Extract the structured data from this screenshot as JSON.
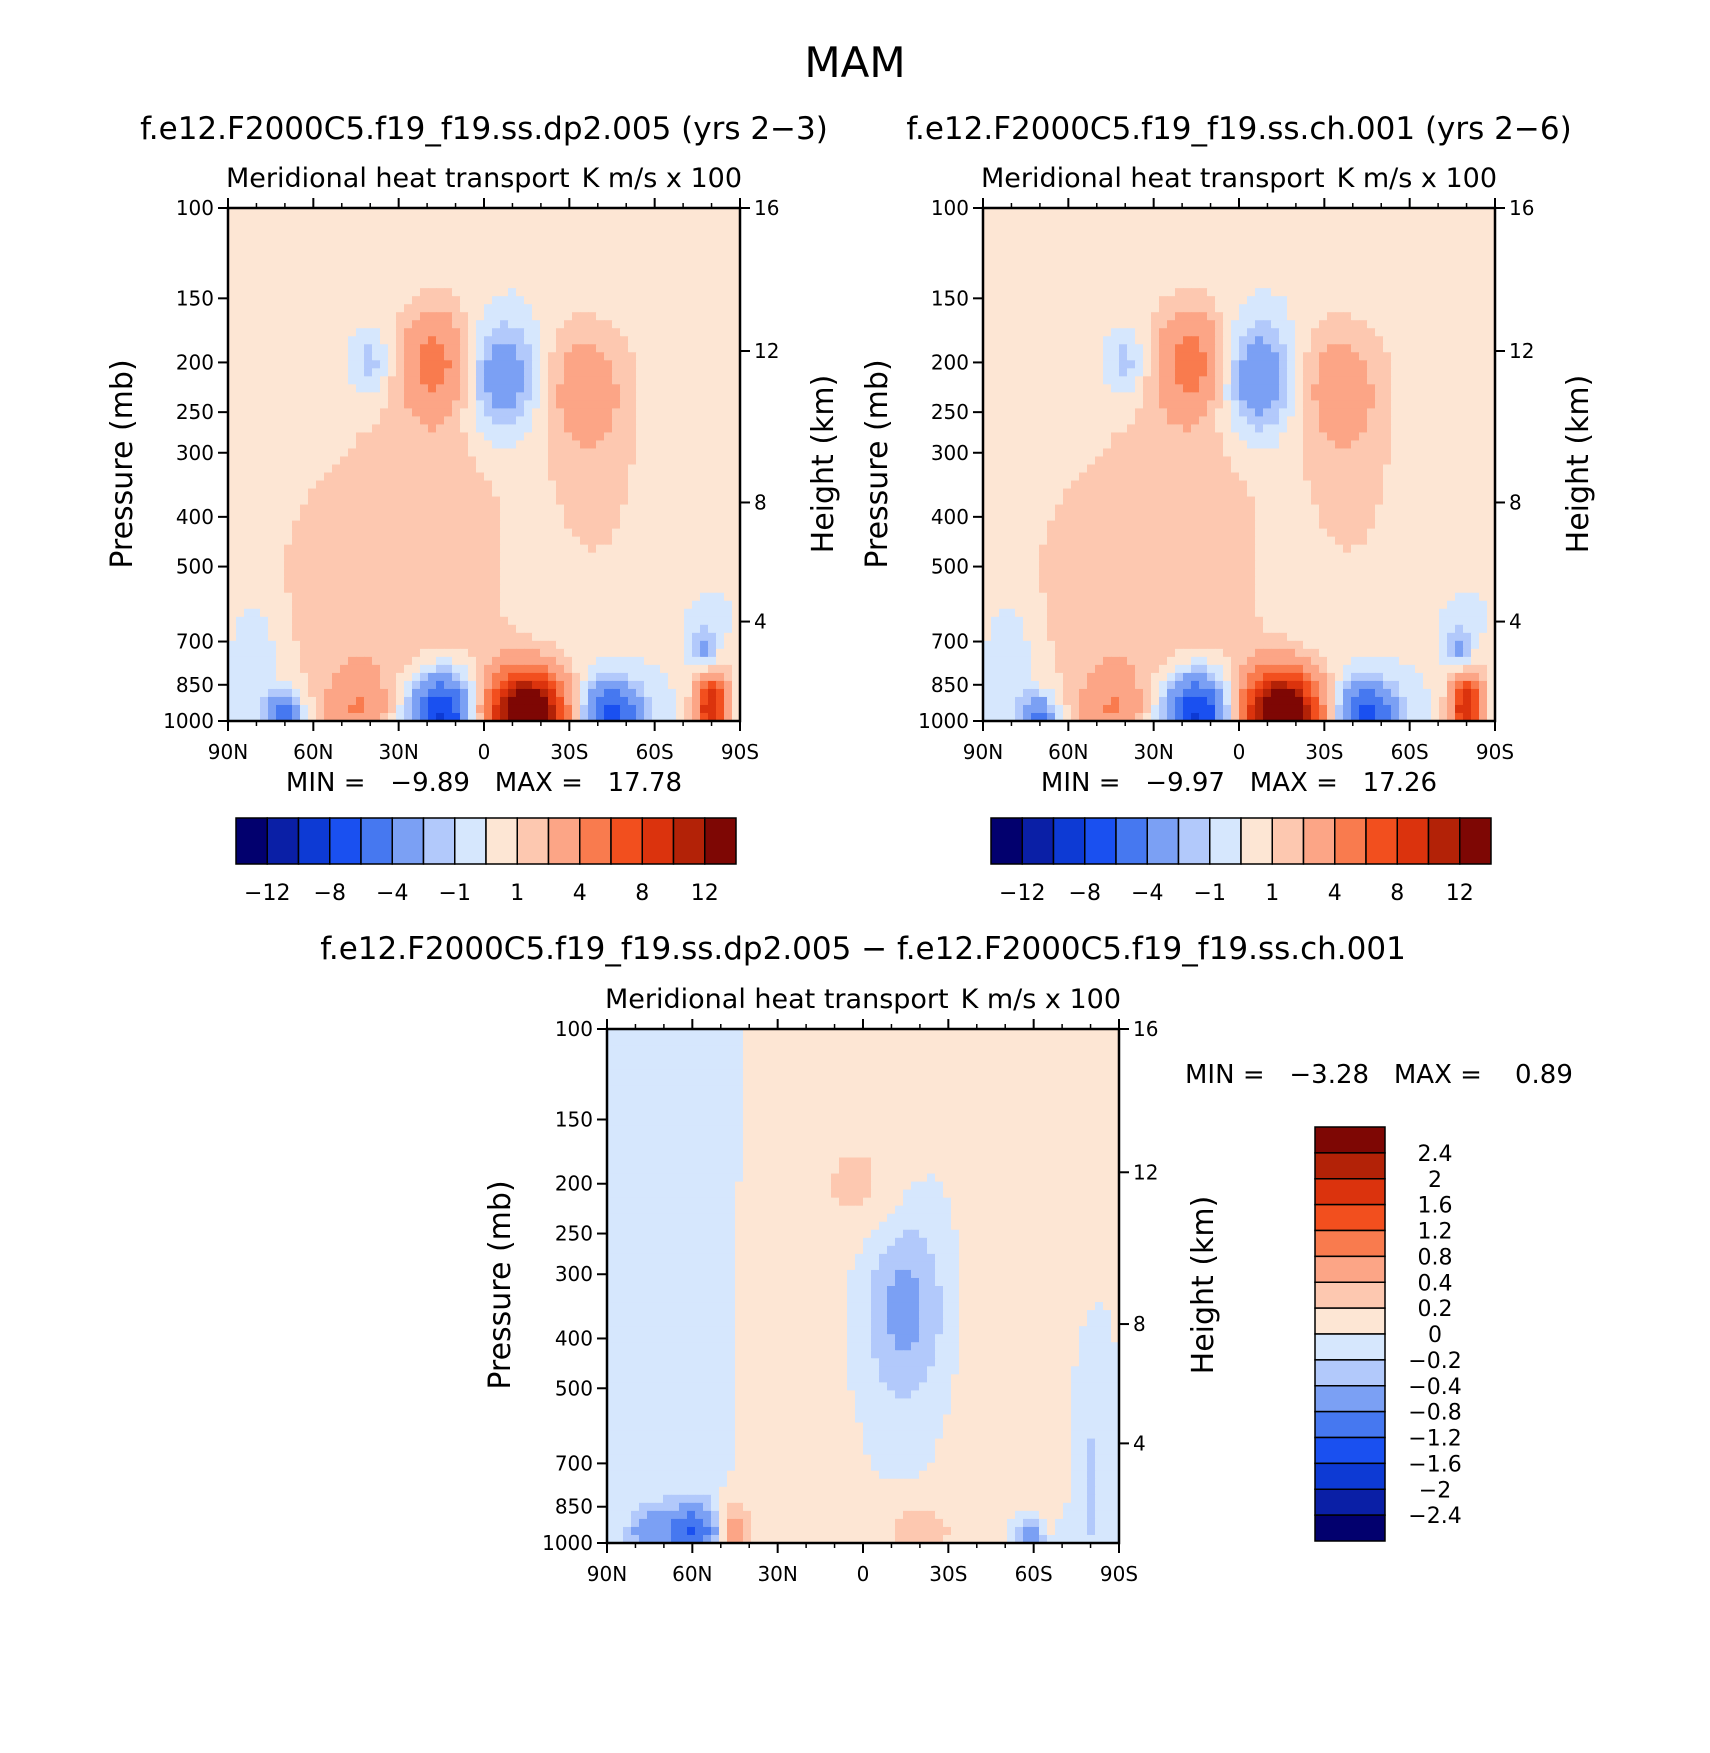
{
  "season_title": "MAM",
  "chart_data": [
    {
      "type": "heatmap",
      "panel": "top-left",
      "title": "f.e12.F2000C5.f19_f19.ss.dp2.005 (yrs 2−3)",
      "subtitle_left": "Meridional heat transport",
      "subtitle_right": "K m/s x 100",
      "ylabel": "Pressure (mb)",
      "ylabel_right": "Height (km)",
      "x_ticks": [
        "90N",
        "60N",
        "30N",
        "0",
        "30S",
        "60S",
        "90S"
      ],
      "x_values": [
        90,
        60,
        30,
        0,
        -30,
        -60,
        -90
      ],
      "y_ticks": [
        100,
        150,
        200,
        250,
        300,
        400,
        500,
        700,
        850,
        1000
      ],
      "height_ticks": [
        16,
        12,
        8,
        4
      ],
      "ylim": [
        1000,
        100
      ],
      "y_scale": "log",
      "stats": "MIN =   −9.89   MAX =   17.78",
      "min": -9.89,
      "max": 17.78,
      "colorbar_labels": [
        "−12",
        "−8",
        "−4",
        "−1",
        "1",
        "4",
        "8",
        "12"
      ],
      "colorbar_levels": [
        -12,
        -10,
        -8,
        -6,
        -4,
        -2,
        -1,
        0,
        1,
        2,
        4,
        6,
        8,
        10,
        12
      ],
      "colorbar_orientation": "horizontal",
      "colors": [
        "#02006e",
        "#0a1fa6",
        "#0d3ad4",
        "#1a50f0",
        "#4678f0",
        "#7ba0f4",
        "#b2c9fb",
        "#d6e7fd",
        "#fde6d4",
        "#fdc8b0",
        "#fca586",
        "#f97b4e",
        "#f24f1e",
        "#db330d",
        "#b32207",
        "#7e0704"
      ],
      "features": [
        {
          "lat": 17,
          "p": 200,
          "v": 4,
          "sx": 8,
          "sy": 0.16
        },
        {
          "lat": -7,
          "p": 215,
          "v": -4,
          "sx": 9,
          "sy": 0.18
        },
        {
          "lat": -34,
          "p": 220,
          "v": 2,
          "sx": 12,
          "sy": 0.2
        },
        {
          "lat": 40,
          "p": 200,
          "v": -2,
          "sx": 5,
          "sy": 0.1
        },
        {
          "lat": 15,
          "p": 500,
          "v": 1.5,
          "sx": 22,
          "sy": 0.9
        },
        {
          "lat": -40,
          "p": 320,
          "v": 1.3,
          "sx": 13,
          "sy": 0.45
        },
        {
          "lat": 55,
          "p": 560,
          "v": 1.2,
          "sx": 25,
          "sy": 0.55
        },
        {
          "lat": -15,
          "p": 970,
          "v": 17,
          "sx": 9,
          "sy": 0.13
        },
        {
          "lat": 15,
          "p": 970,
          "v": -9.5,
          "sx": 8,
          "sy": 0.13
        },
        {
          "lat": -45,
          "p": 970,
          "v": -7,
          "sx": 7,
          "sy": 0.1
        },
        {
          "lat": -80,
          "p": 950,
          "v": 10,
          "sx": 4,
          "sy": 0.12
        },
        {
          "lat": 45,
          "p": 950,
          "v": 3,
          "sx": 7,
          "sy": 0.12
        },
        {
          "lat": 70,
          "p": 985,
          "v": -6,
          "sx": 4,
          "sy": 0.07
        },
        {
          "lat": -78,
          "p": 730,
          "v": -3,
          "sx": 3,
          "sy": 0.08
        },
        {
          "lat": 80,
          "p": 800,
          "v": -1.5,
          "sx": 6,
          "sy": 0.25
        }
      ]
    },
    {
      "type": "heatmap",
      "panel": "top-right",
      "title": "f.e12.F2000C5.f19_f19.ss.ch.001 (yrs 2−6)",
      "subtitle_left": "Meridional heat transport",
      "subtitle_right": "K m/s x 100",
      "ylabel": "Pressure (mb)",
      "ylabel_right": "Height (km)",
      "x_ticks": [
        "90N",
        "60N",
        "30N",
        "0",
        "30S",
        "60S",
        "90S"
      ],
      "x_values": [
        90,
        60,
        30,
        0,
        -30,
        -60,
        -90
      ],
      "y_ticks": [
        100,
        150,
        200,
        250,
        300,
        400,
        500,
        700,
        850,
        1000
      ],
      "height_ticks": [
        16,
        12,
        8,
        4
      ],
      "ylim": [
        1000,
        100
      ],
      "y_scale": "log",
      "stats": "MIN =   −9.97   MAX =   17.26",
      "min": -9.97,
      "max": 17.26,
      "colorbar_labels": [
        "−12",
        "−8",
        "−4",
        "−1",
        "1",
        "4",
        "8",
        "12"
      ],
      "colorbar_levels": [
        -12,
        -10,
        -8,
        -6,
        -4,
        -2,
        -1,
        0,
        1,
        2,
        4,
        6,
        8,
        10,
        12
      ],
      "colorbar_orientation": "horizontal",
      "colors": [
        "#02006e",
        "#0a1fa6",
        "#0d3ad4",
        "#1a50f0",
        "#4678f0",
        "#7ba0f4",
        "#b2c9fb",
        "#d6e7fd",
        "#fde6d4",
        "#fdc8b0",
        "#fca586",
        "#f97b4e",
        "#f24f1e",
        "#db330d",
        "#b32207",
        "#7e0704"
      ],
      "features": [
        {
          "lat": 17,
          "p": 200,
          "v": 4.2,
          "sx": 8,
          "sy": 0.16
        },
        {
          "lat": -7,
          "p": 215,
          "v": -4.2,
          "sx": 9,
          "sy": 0.18
        },
        {
          "lat": -34,
          "p": 220,
          "v": 2,
          "sx": 12,
          "sy": 0.2
        },
        {
          "lat": 40,
          "p": 200,
          "v": -2,
          "sx": 5,
          "sy": 0.1
        },
        {
          "lat": 15,
          "p": 500,
          "v": 1.5,
          "sx": 22,
          "sy": 0.9
        },
        {
          "lat": -40,
          "p": 320,
          "v": 1.3,
          "sx": 13,
          "sy": 0.45
        },
        {
          "lat": 55,
          "p": 560,
          "v": 1.2,
          "sx": 25,
          "sy": 0.55
        },
        {
          "lat": -15,
          "p": 970,
          "v": 16.5,
          "sx": 9,
          "sy": 0.13
        },
        {
          "lat": 15,
          "p": 970,
          "v": -9.6,
          "sx": 8,
          "sy": 0.13
        },
        {
          "lat": -45,
          "p": 970,
          "v": -7,
          "sx": 7,
          "sy": 0.1
        },
        {
          "lat": -80,
          "p": 950,
          "v": 10,
          "sx": 4,
          "sy": 0.12
        },
        {
          "lat": 45,
          "p": 950,
          "v": 3,
          "sx": 7,
          "sy": 0.12
        },
        {
          "lat": 70,
          "p": 985,
          "v": -5,
          "sx": 4,
          "sy": 0.07
        },
        {
          "lat": -78,
          "p": 730,
          "v": -3,
          "sx": 3,
          "sy": 0.08
        },
        {
          "lat": 80,
          "p": 800,
          "v": -1.5,
          "sx": 6,
          "sy": 0.25
        }
      ]
    },
    {
      "type": "heatmap",
      "panel": "bottom",
      "title": "f.e12.F2000C5.f19_f19.ss.dp2.005 − f.e12.F2000C5.f19_f19.ss.ch.001",
      "subtitle_left": "Meridional heat transport",
      "subtitle_right": "K m/s x 100",
      "ylabel": "Pressure (mb)",
      "ylabel_right": "Height (km)",
      "x_ticks": [
        "90N",
        "60N",
        "30N",
        "0",
        "30S",
        "60S",
        "90S"
      ],
      "x_values": [
        90,
        60,
        30,
        0,
        -30,
        -60,
        -90
      ],
      "y_ticks": [
        100,
        150,
        200,
        250,
        300,
        400,
        500,
        700,
        850,
        1000
      ],
      "height_ticks": [
        16,
        12,
        8,
        4
      ],
      "ylim": [
        1000,
        100
      ],
      "y_scale": "log",
      "stats": "MIN =   −3.28   MAX =    0.89",
      "min": -3.28,
      "max": 0.89,
      "colorbar_labels": [
        "2.4",
        "2",
        "1.6",
        "1.2",
        "0.8",
        "0.4",
        "0.2",
        "0",
        "−0.2",
        "−0.4",
        "−0.8",
        "−1.2",
        "−1.6",
        "−2",
        "−2.4"
      ],
      "colorbar_levels": [
        2.4,
        2,
        1.6,
        1.2,
        0.8,
        0.4,
        0.2,
        0,
        -0.2,
        -0.4,
        -0.8,
        -1.2,
        -1.6,
        -2,
        -2.4
      ],
      "colorbar_orientation": "vertical",
      "colors": [
        "#02006e",
        "#0a1fa6",
        "#0d3ad4",
        "#1a50f0",
        "#4678f0",
        "#7ba0f4",
        "#b2c9fb",
        "#d6e7fd",
        "#fde6d4",
        "#fdc8b0",
        "#fca586",
        "#f97b4e",
        "#f24f1e",
        "#db330d",
        "#b32207",
        "#7e0704"
      ],
      "features": [
        {
          "lat": 60,
          "p": 950,
          "v": -1.2,
          "sx": 6,
          "sy": 0.08
        },
        {
          "lat": 75,
          "p": 960,
          "v": -0.6,
          "sx": 5,
          "sy": 0.08
        },
        {
          "lat": 45,
          "p": 960,
          "v": 0.6,
          "sx": 4,
          "sy": 0.1
        },
        {
          "lat": -20,
          "p": 960,
          "v": 0.35,
          "sx": 8,
          "sy": 0.1
        },
        {
          "lat": -60,
          "p": 980,
          "v": -0.6,
          "sx": 5,
          "sy": 0.06
        },
        {
          "lat": -65,
          "p": 940,
          "v": 0.3,
          "sx": 2,
          "sy": 0.06
        },
        {
          "lat": -80,
          "p": 780,
          "v": -0.3,
          "sx": 3,
          "sy": 0.25
        },
        {
          "lat": -15,
          "p": 350,
          "v": -0.5,
          "sx": 10,
          "sy": 0.3
        },
        {
          "lat": 0,
          "p": 200,
          "v": 0.25,
          "sx": 12,
          "sy": 0.2
        },
        {
          "lat": 25,
          "p": 600,
          "v": 0.12,
          "sx": 14,
          "sy": 0.9
        },
        {
          "lat": -45,
          "p": 450,
          "v": 0.12,
          "sx": 12,
          "sy": 0.8
        },
        {
          "lat": 65,
          "p": 500,
          "v": -0.1,
          "sx": 15,
          "sy": 1.0
        }
      ]
    }
  ]
}
